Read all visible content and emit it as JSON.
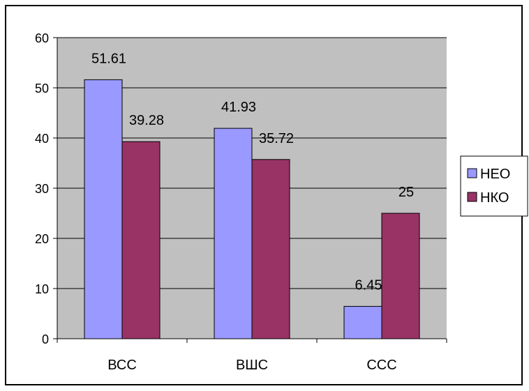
{
  "chart_data": {
    "type": "bar",
    "categories": [
      "ВСС",
      "ВШС",
      "ССС"
    ],
    "series": [
      {
        "name": "НЕО",
        "values": [
          51.61,
          41.93,
          6.45
        ],
        "labels": [
          "51.61",
          "41.93",
          "6.45"
        ],
        "color": "#9999ff"
      },
      {
        "name": "НКО",
        "values": [
          39.28,
          35.72,
          25
        ],
        "labels": [
          "39.28",
          "35.72",
          "25"
        ],
        "color": "#993366"
      }
    ],
    "yticks": [
      "0",
      "10",
      "20",
      "30",
      "40",
      "50",
      "60"
    ],
    "ylim": [
      0,
      60
    ],
    "grid": true,
    "plot_background": "#c0c0c0",
    "legend": "right"
  }
}
